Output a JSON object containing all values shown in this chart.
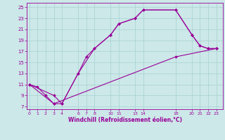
{
  "xlabel": "Windchill (Refroidissement éolien,°C)",
  "bg_color": "#cce8e8",
  "line_color": "#990099",
  "xlim": [
    -0.3,
    23.8
  ],
  "ylim": [
    6.5,
    25.8
  ],
  "xticks": [
    0,
    1,
    2,
    3,
    4,
    6,
    7,
    8,
    10,
    11,
    13,
    14,
    18,
    20,
    21,
    22,
    23
  ],
  "yticks": [
    7,
    9,
    11,
    13,
    15,
    17,
    19,
    21,
    23,
    25
  ],
  "line1_x": [
    0,
    1,
    2,
    3,
    4,
    6,
    7,
    8,
    10,
    11,
    13,
    14,
    18,
    20,
    21,
    22,
    23
  ],
  "line1_y": [
    11,
    10.5,
    9,
    7.5,
    7.5,
    13,
    16,
    17.5,
    20,
    22,
    23,
    24.5,
    24.5,
    20,
    18,
    17.5,
    17.5
  ],
  "line2_x": [
    0,
    3,
    4,
    6,
    8,
    10,
    11,
    13,
    14,
    18,
    20,
    21,
    22,
    23
  ],
  "line2_y": [
    11,
    9,
    7.5,
    13,
    17.5,
    20,
    22,
    23,
    24.5,
    24.5,
    20,
    18,
    17.5,
    17.5
  ],
  "line3_x": [
    0,
    3,
    18,
    23
  ],
  "line3_y": [
    11,
    7.5,
    16,
    17.5
  ]
}
